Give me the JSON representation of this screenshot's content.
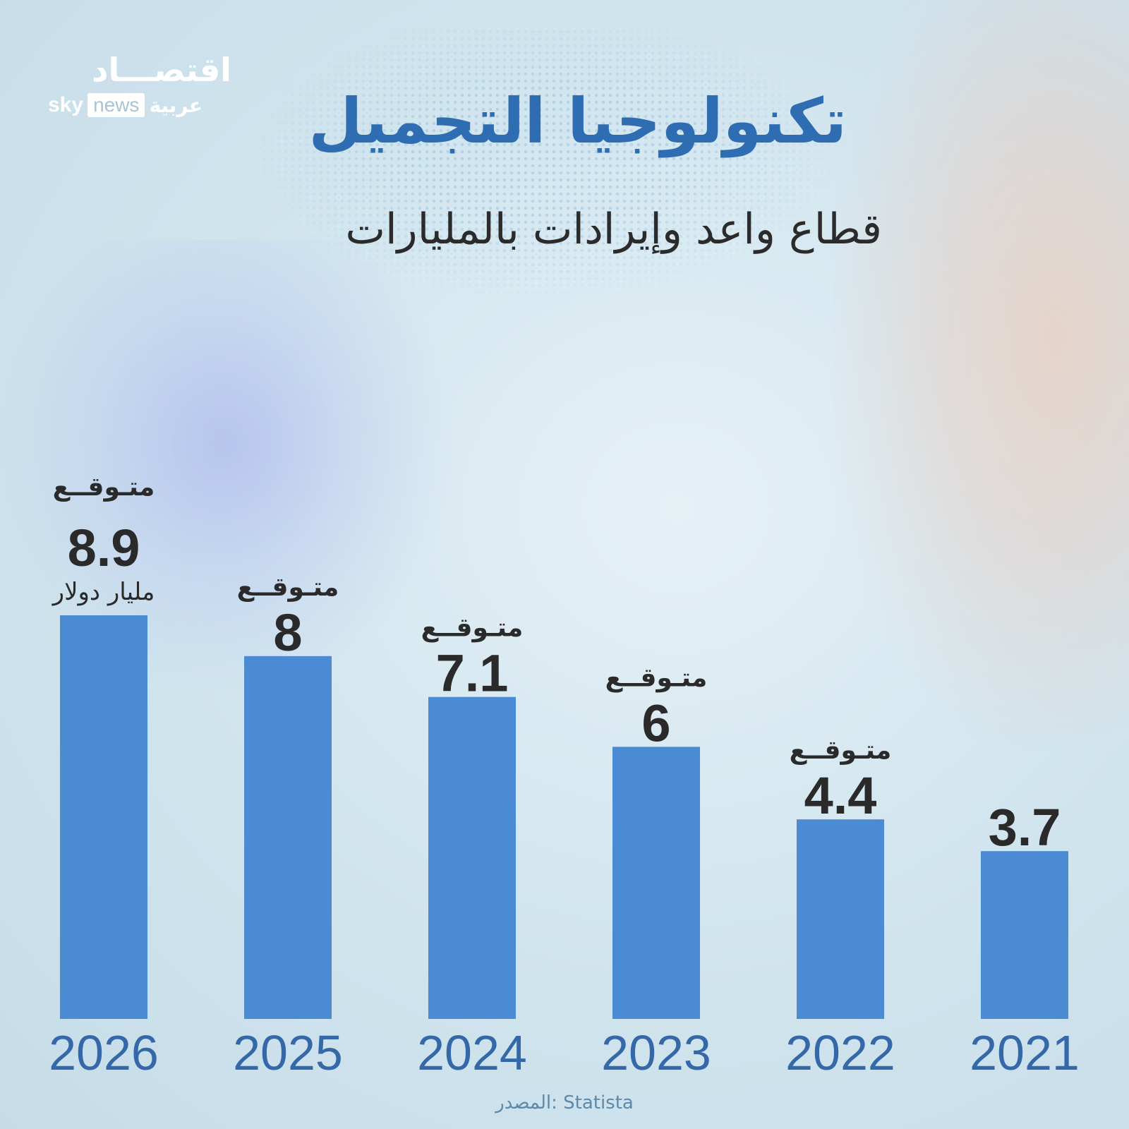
{
  "brand": {
    "arabic_wordmark": "اقتصـــاد",
    "sky": "sky",
    "news": "news",
    "arabiya": "عربية"
  },
  "header": {
    "title": "تكنولوجيا التجميل",
    "subtitle": "قطاع واعد وإيرادات بالمليارات"
  },
  "source": "المصدر: Statista",
  "colors": {
    "bar": "#4a8bd3",
    "title": "#2f6db2",
    "year": "#3568a8",
    "value": "#2a2a2a"
  },
  "chart_data": {
    "type": "bar",
    "categories": [
      "2026",
      "2025",
      "2024",
      "2023",
      "2022",
      "2021"
    ],
    "values": [
      8.9,
      8,
      7.1,
      6,
      4.4,
      3.7
    ],
    "value_labels": [
      "8.9",
      "8",
      "7.1",
      "6",
      "4.4",
      "3.7"
    ],
    "forecast": [
      true,
      true,
      true,
      true,
      true,
      false
    ],
    "forecast_label": "متـوقــع",
    "unit_label": "مليار دولار",
    "title": "تكنولوجيا التجميل",
    "subtitle": "قطاع واعد وإيرادات بالمليارات",
    "xlabel": "",
    "ylabel": "",
    "ylim": [
      0,
      8.9
    ],
    "grid": false
  }
}
